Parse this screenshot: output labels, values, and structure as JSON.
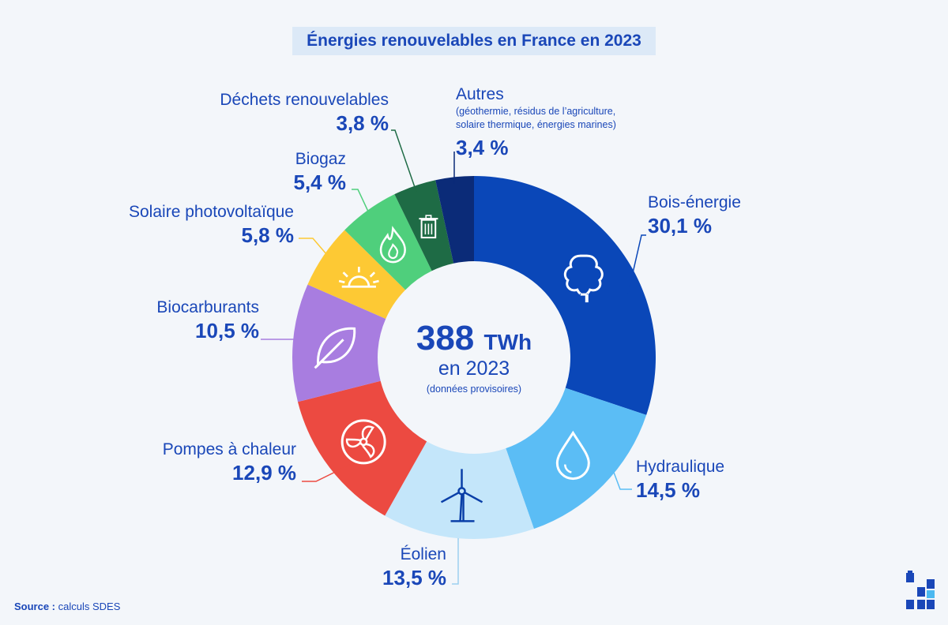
{
  "chart_data": {
    "type": "pie",
    "title": "Énergies renouvelables en France en 2023",
    "center": {
      "total_value": "388",
      "total_unit": "TWh",
      "year_text": "en 2023",
      "note": "(données provisoires)"
    },
    "categories": [
      "Bois-énergie",
      "Hydraulique",
      "Éolien",
      "Pompes à chaleur",
      "Biocarburants",
      "Solaire photovoltaïque",
      "Biogaz",
      "Déchets renouvelables",
      "Autres"
    ],
    "values": [
      30.1,
      14.5,
      13.5,
      12.9,
      10.5,
      5.8,
      5.4,
      3.8,
      3.4
    ],
    "value_labels": [
      "30,1 %",
      "14,5 %",
      "13,5 %",
      "12,9 %",
      "10,5 %",
      "5,8 %",
      "5,4 %",
      "3,8 %",
      "3,4 %"
    ],
    "colors": [
      "#0a47b8",
      "#5bbdf5",
      "#c4e6fa",
      "#ec4a41",
      "#a87de0",
      "#fdc934",
      "#4fcf7c",
      "#1e6b45",
      "#0b2b78"
    ],
    "icons": [
      "tree-icon",
      "water-drop-icon",
      "wind-turbine-icon",
      "fan-icon",
      "leaf-icon",
      "sun-icon",
      "flame-icon",
      "trash-bin-icon",
      ""
    ],
    "others_detail": "(géothermie, résidus de l’agriculture, solaire thermique, énergies marines)"
  },
  "source": {
    "prefix": "Source :",
    "text": "calculs SDES"
  },
  "logo": "sdes-logo-icon"
}
